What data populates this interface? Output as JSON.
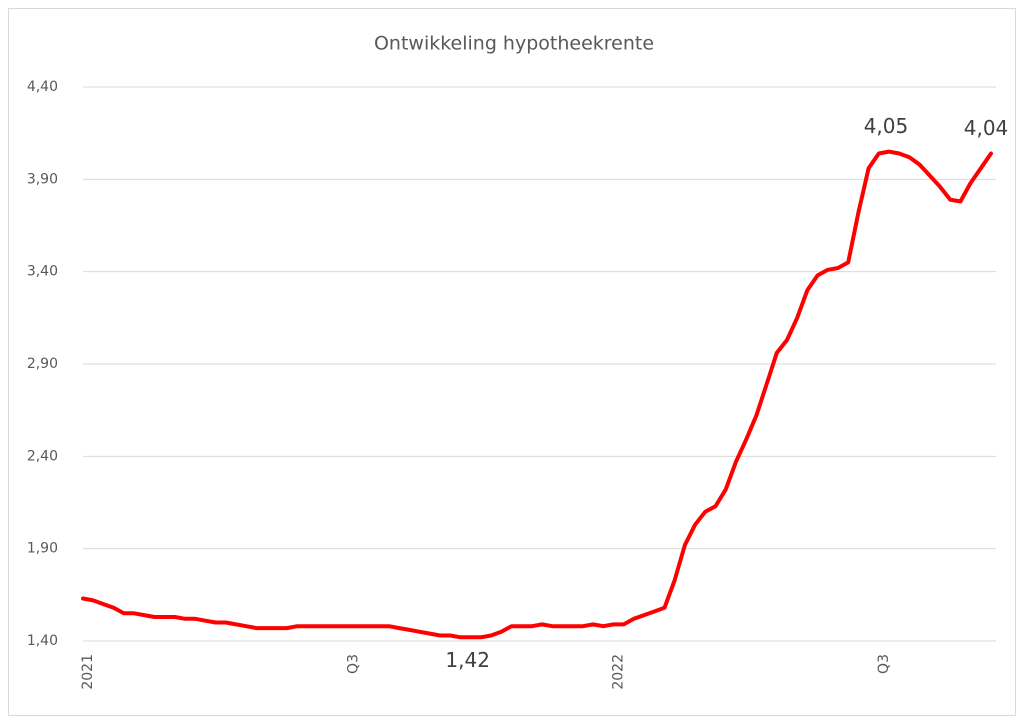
{
  "chart_data": {
    "type": "line",
    "title": "Ontwikkeling hypotheekrente",
    "color": "#ff0000",
    "grid": true,
    "ylim": [
      1.4,
      4.4
    ],
    "yticks": [
      {
        "value": 1.4,
        "label": "1,40"
      },
      {
        "value": 1.9,
        "label": "1,90"
      },
      {
        "value": 2.4,
        "label": "2,40"
      },
      {
        "value": 2.9,
        "label": "2,90"
      },
      {
        "value": 3.4,
        "label": "3,40"
      },
      {
        "value": 3.9,
        "label": "3,90"
      },
      {
        "value": 4.4,
        "label": "4,40"
      }
    ],
    "categories": [
      "2021",
      null,
      null,
      null,
      null,
      null,
      null,
      null,
      null,
      null,
      null,
      null,
      null,
      null,
      null,
      null,
      null,
      null,
      null,
      null,
      null,
      null,
      null,
      null,
      null,
      null,
      "Q3",
      null,
      null,
      null,
      null,
      null,
      null,
      null,
      null,
      null,
      null,
      null,
      null,
      null,
      null,
      null,
      null,
      null,
      null,
      null,
      null,
      null,
      null,
      null,
      null,
      null,
      "2022",
      null,
      null,
      null,
      null,
      null,
      null,
      null,
      null,
      null,
      null,
      null,
      null,
      null,
      null,
      null,
      null,
      null,
      null,
      null,
      null,
      null,
      null,
      null,
      null,
      null,
      "Q3",
      null,
      null,
      null,
      null,
      null,
      null,
      null,
      null,
      null,
      null,
      null
    ],
    "values": [
      1.63,
      1.62,
      1.6,
      1.58,
      1.55,
      1.55,
      1.54,
      1.53,
      1.53,
      1.53,
      1.52,
      1.52,
      1.51,
      1.5,
      1.5,
      1.49,
      1.48,
      1.47,
      1.47,
      1.47,
      1.47,
      1.48,
      1.48,
      1.48,
      1.48,
      1.48,
      1.48,
      1.48,
      1.48,
      1.48,
      1.48,
      1.47,
      1.46,
      1.45,
      1.44,
      1.43,
      1.43,
      1.42,
      1.42,
      1.42,
      1.43,
      1.45,
      1.48,
      1.48,
      1.48,
      1.49,
      1.48,
      1.48,
      1.48,
      1.48,
      1.49,
      1.48,
      1.49,
      1.49,
      1.52,
      1.54,
      1.56,
      1.58,
      1.73,
      1.92,
      2.03,
      2.1,
      2.13,
      2.22,
      2.37,
      2.49,
      2.62,
      2.79,
      2.96,
      3.03,
      3.15,
      3.3,
      3.38,
      3.41,
      3.42,
      3.45,
      3.72,
      3.96,
      4.04,
      4.05,
      4.04,
      4.02,
      3.98,
      3.92,
      3.86,
      3.79,
      3.78,
      3.88,
      3.96,
      4.04
    ],
    "value_labels": [
      null,
      null,
      null,
      null,
      null,
      null,
      null,
      null,
      null,
      null,
      null,
      null,
      null,
      null,
      null,
      null,
      null,
      null,
      null,
      null,
      null,
      null,
      null,
      null,
      null,
      null,
      null,
      null,
      null,
      null,
      null,
      null,
      null,
      null,
      null,
      null,
      null,
      null,
      "1,42",
      null,
      null,
      null,
      null,
      null,
      null,
      null,
      null,
      null,
      null,
      null,
      null,
      null,
      null,
      null,
      null,
      null,
      null,
      null,
      null,
      null,
      null,
      null,
      null,
      null,
      null,
      null,
      null,
      null,
      null,
      null,
      null,
      null,
      null,
      null,
      null,
      null,
      null,
      null,
      null,
      "4,05",
      null,
      null,
      null,
      null,
      null,
      null,
      null,
      null,
      null,
      "4,04"
    ]
  }
}
